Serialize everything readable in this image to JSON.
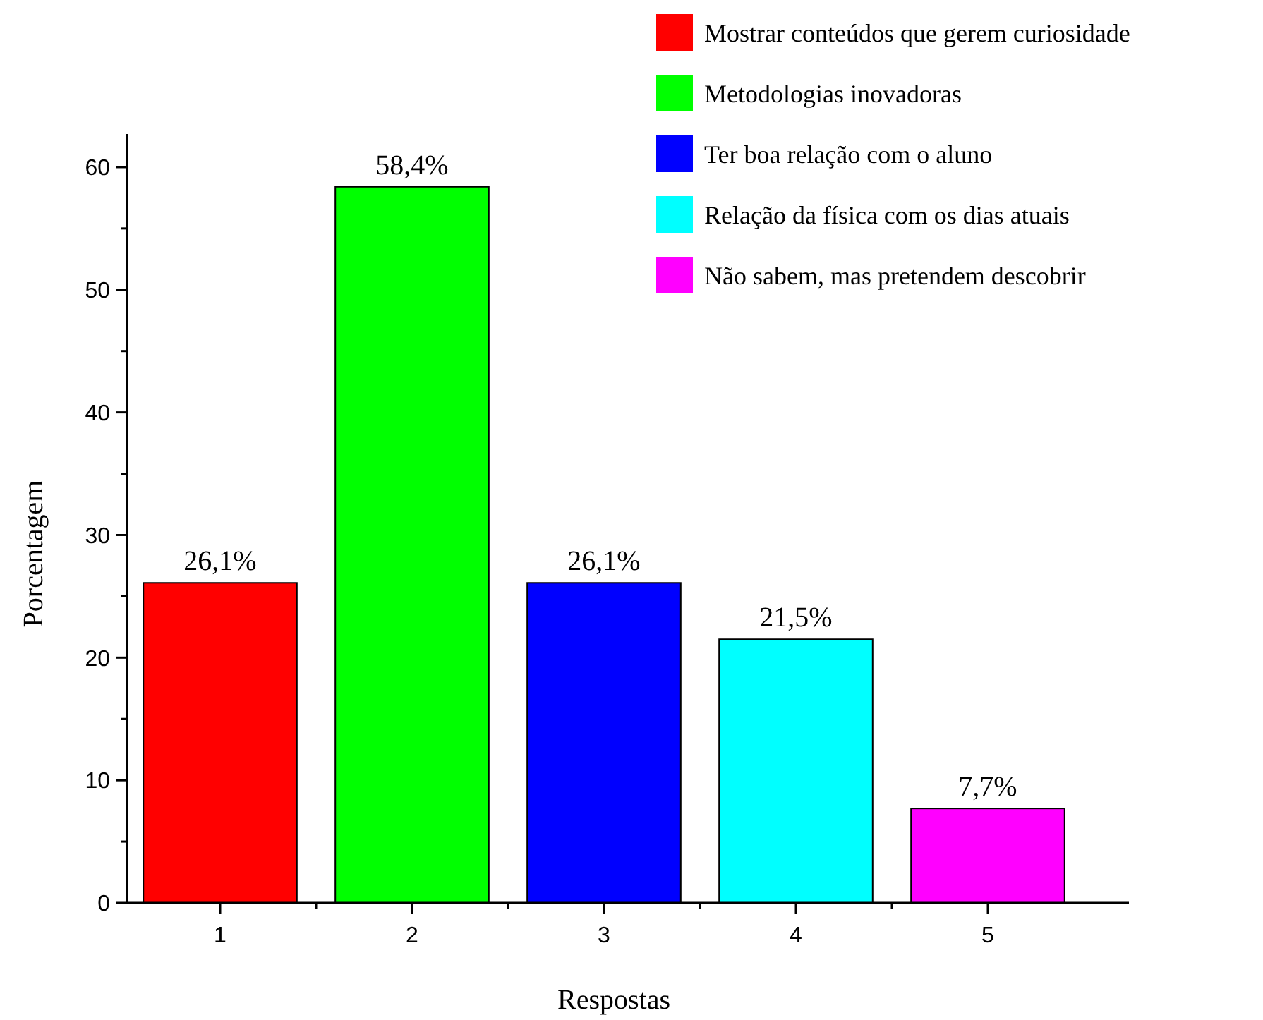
{
  "chart_data": {
    "type": "bar",
    "xlabel": "Respostas",
    "ylabel": "Porcentagem",
    "categories": [
      "1",
      "2",
      "3",
      "4",
      "5"
    ],
    "series": [
      {
        "name": "Mostrar conteúdos que gerem curiosidade",
        "color": "#ff0000",
        "values": [
          26.1,
          null,
          null,
          null,
          null
        ],
        "value_labels": [
          "26,1%",
          null,
          null,
          null,
          null
        ]
      },
      {
        "name": "Metodologias inovadoras",
        "color": "#00ff00",
        "values": [
          null,
          58.4,
          null,
          null,
          null
        ],
        "value_labels": [
          null,
          "58,4%",
          null,
          null,
          null
        ]
      },
      {
        "name": "Ter boa relação com o aluno",
        "color": "#0000ff",
        "values": [
          null,
          null,
          26.1,
          null,
          null
        ],
        "value_labels": [
          null,
          null,
          "26,1%",
          null,
          null
        ]
      },
      {
        "name": "Relação da física com os dias atuais",
        "color": "#00ffff",
        "values": [
          null,
          null,
          null,
          21.5,
          null
        ],
        "value_labels": [
          null,
          null,
          null,
          "21,5%",
          null
        ]
      },
      {
        "name": "Não sabem, mas pretendem descobrir",
        "color": "#ff00ff",
        "values": [
          null,
          null,
          null,
          null,
          7.7
        ],
        "value_labels": [
          null,
          null,
          null,
          null,
          "7,7%"
        ]
      }
    ],
    "ylim": [
      0,
      62.7
    ],
    "yticks": [
      0,
      10,
      20,
      30,
      40,
      50,
      60
    ],
    "grid": false,
    "legend": "top right"
  }
}
